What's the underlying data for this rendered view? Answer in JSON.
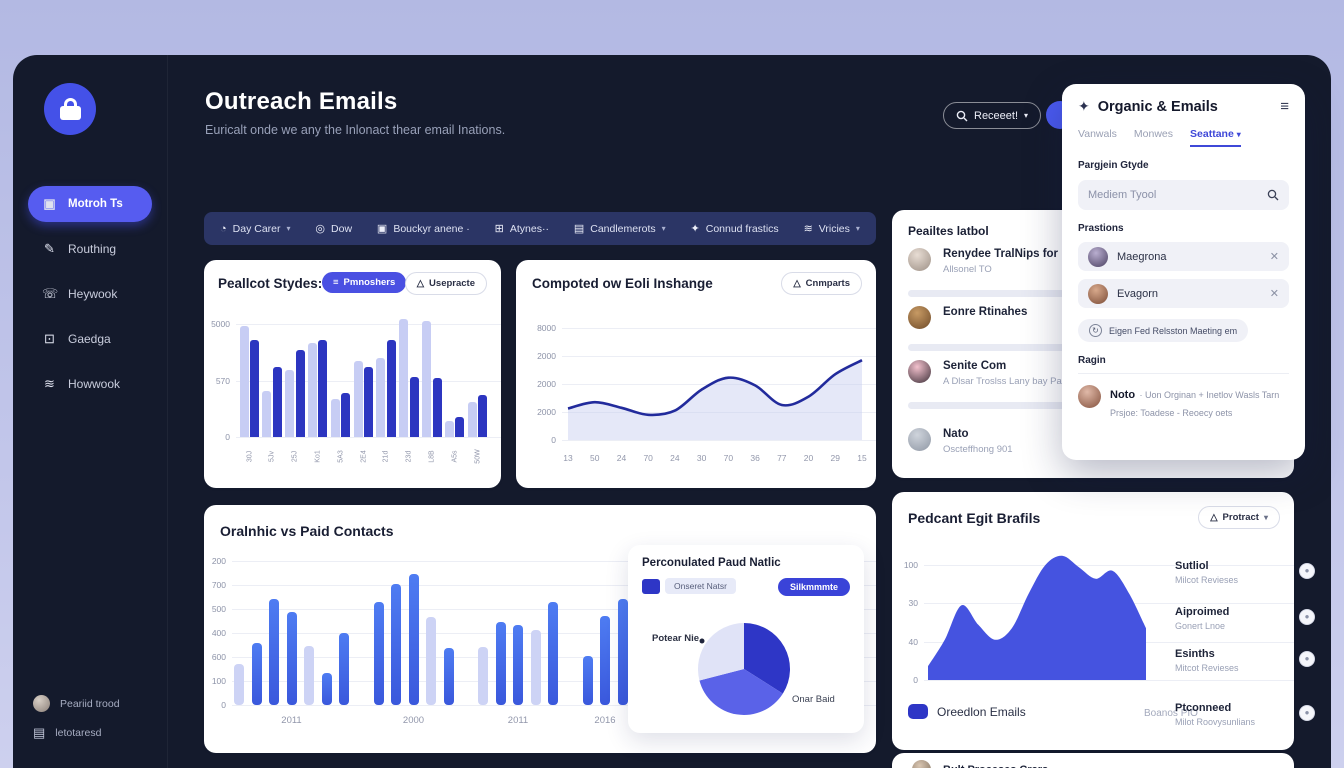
{
  "page": {
    "accent": "#4a50e2",
    "window_bg": "#141a2c",
    "content_bg": "#edeef6"
  },
  "sidebar": {
    "items": [
      {
        "label": "Motroh Ts",
        "icon": "briefcase-icon",
        "active": true
      },
      {
        "label": "Routhing",
        "icon": "pen-icon"
      },
      {
        "label": "Heywook",
        "icon": "phone-icon"
      },
      {
        "label": "Gaedga",
        "icon": "box-arrow-icon"
      },
      {
        "label": "Howwook",
        "icon": "layers-icon"
      }
    ],
    "footer": [
      {
        "label": "Peariid trood"
      },
      {
        "label": "letotaresd"
      }
    ]
  },
  "header": {
    "title": "Outreach Emails",
    "subtitle": "Euricalt onde we any the Inlonact thear email Inations.",
    "search_label": "Receeet!"
  },
  "toolbar": {
    "items": [
      {
        "label": "Day Carer",
        "chevron": true
      },
      {
        "label": "Dow",
        "chevron": false
      },
      {
        "label": "Bouckyr anene ·",
        "chevron": false
      },
      {
        "label": "Atynes··",
        "chevron": false
      },
      {
        "label": "Candlemerots",
        "chevron": true
      },
      {
        "label": "Connud frastics",
        "chevron": false
      },
      {
        "label": "Vricies",
        "chevron": true
      }
    ]
  },
  "cards": {
    "stydes": {
      "title": "Peallcot Stydes:",
      "btn_primary": "Pmnoshers",
      "btn_secondary": "Usepracte"
    },
    "inshange": {
      "title": "Compoted ow Eoli Inshange",
      "btn": "Cnmparts"
    },
    "contacts_list": {
      "title": "Peailtes latbol",
      "rows": [
        {
          "name": "Renydee TralNips for Piali",
          "sub": "Allsonel TO"
        },
        {
          "name": "Eonre Rtinahes",
          "sub": ""
        },
        {
          "name": "Senite Com",
          "sub": "A Dlsar Troslss Lany bay Palsis"
        },
        {
          "name": "Nato",
          "sub": "Oscteffhong 901"
        }
      ]
    },
    "organic": {
      "title": "Oralnhic vs Paid Contacts"
    },
    "paid_traffic": {
      "title": "Perconulated Paud Natlic",
      "legend": "Onseret Natsr",
      "button": "Silkmmmte",
      "label_left": "Potear Nie",
      "label_right": "Onar Baid"
    },
    "brafils": {
      "title": "Pedcant Egit Brafils",
      "btn": "Protract",
      "legend": "Oreedlon Emails",
      "note": "Boanos PIO",
      "stats": [
        {
          "title": "Sutliol",
          "sub": "Milcot Revieses"
        },
        {
          "title": "Aiproimed",
          "sub": "Gonert Lnoe"
        },
        {
          "title": "Esinths",
          "sub": "Mitcot Revieses"
        },
        {
          "title": "Ptconneed",
          "sub": "Milot Roovysunlians"
        }
      ]
    },
    "bottom_partial": {
      "title": "Bult Proceses Crars"
    }
  },
  "panel": {
    "title": "Organic & Emails",
    "tabs": [
      {
        "label": "Vanwals",
        "active": false
      },
      {
        "label": "Monwes",
        "active": false
      },
      {
        "label": "Seattane",
        "active": true
      }
    ],
    "section_style": "Pargjein Gtyde",
    "search_placeholder": "Mediem Tyool",
    "section_positions": "Prastions",
    "chips": [
      {
        "label": "Maegrona"
      },
      {
        "label": "Evagorn"
      }
    ],
    "action": "Eigen Fed Relsston Maeting em",
    "section_region": "Ragin",
    "note": {
      "name": "Noto",
      "line1": "· Uon Orginan + Inetlov Wasls Tarn",
      "line2": "Prsjoe:  Toadese - Reoecy oets"
    }
  },
  "chart_data": [
    {
      "id": "stydes",
      "type": "bar",
      "title": "Peallcot Stydes:",
      "categories": [
        "30J",
        "5Jv",
        "25J",
        "Ko1",
        "5A3",
        "2E4",
        "21d",
        "23d",
        "L8B",
        "A5s",
        "50W"
      ],
      "series": [
        {
          "name": "light",
          "values": [
            4900,
            2050,
            2950,
            4150,
            1700,
            3350,
            3500,
            5200,
            5150,
            700,
            1550
          ]
        },
        {
          "name": "dark",
          "values": [
            4300,
            3100,
            3850,
            4300,
            1950,
            3100,
            4300,
            2650,
            2600,
            900,
            1850
          ]
        }
      ],
      "yticks": [
        "5000",
        "570",
        "0"
      ],
      "ytop": 5000,
      "ylim": [
        0,
        5500
      ],
      "colors": {
        "light": "#c7cdf4",
        "dark": "#2c35c0"
      }
    },
    {
      "id": "inshange",
      "type": "line",
      "title": "Compoted ow Eoli Inshange",
      "x": [
        "13",
        "50",
        "24",
        "70",
        "24",
        "30",
        "70",
        "36",
        "77",
        "20",
        "29",
        "15"
      ],
      "values": [
        2250,
        2700,
        2300,
        1800,
        2100,
        3600,
        4450,
        3900,
        2500,
        3100,
        4700,
        5700
      ],
      "yticks": [
        "8000",
        "2000",
        "2000",
        "2000",
        "0"
      ],
      "ytop": 8000,
      "ylim": [
        0,
        8000
      ],
      "colors": {
        "line": "#222b9c",
        "fill": "#c6ccf0"
      }
    },
    {
      "id": "organic",
      "type": "bar",
      "title": "Oralnhic vs Paid Contacts",
      "categories": [
        "2011",
        "2000",
        "2011",
        "2016"
      ],
      "groups": [
        7,
        5,
        5,
        3
      ],
      "bars": [
        {
          "v": 230,
          "c": "light"
        },
        {
          "v": 342,
          "c": "blue"
        },
        {
          "v": 587,
          "c": "blue"
        },
        {
          "v": 518,
          "c": "blue"
        },
        {
          "v": 330,
          "c": "light"
        },
        {
          "v": 176,
          "c": "blue"
        },
        {
          "v": 398,
          "c": "blue"
        },
        {
          "v": 570,
          "c": "blue"
        },
        {
          "v": 672,
          "c": "blue"
        },
        {
          "v": 728,
          "c": "blue"
        },
        {
          "v": 489,
          "c": "light"
        },
        {
          "v": 315,
          "c": "blue"
        },
        {
          "v": 324,
          "c": "light"
        },
        {
          "v": 461,
          "c": "blue"
        },
        {
          "v": 442,
          "c": "blue"
        },
        {
          "v": 418,
          "c": "light"
        },
        {
          "v": 570,
          "c": "blue"
        },
        {
          "v": 270,
          "c": "blue"
        },
        {
          "v": 494,
          "c": "blue"
        },
        {
          "v": 590,
          "c": "blue"
        }
      ],
      "yticks": [
        "200",
        "700",
        "500",
        "400",
        "600",
        "100",
        "0"
      ],
      "ytop": 800,
      "ylim": [
        0,
        800
      ],
      "colors": {
        "light": "#cdd3f5",
        "blue_top": "#4e7cf2",
        "blue_bottom": "#3a58dc"
      }
    },
    {
      "id": "paid_pie",
      "type": "pie",
      "slices": [
        {
          "label": "",
          "value": 34,
          "color": "#2e36c6"
        },
        {
          "label": "Onar Baid",
          "value": 37,
          "color": "#5a62e8"
        },
        {
          "label": "Potear Nie",
          "value": 29,
          "color": "#e0e3f7"
        }
      ],
      "title": "Perconulated Paud Natlic"
    },
    {
      "id": "brafils",
      "type": "area",
      "title": "Pedcant Egit Brafils",
      "values": [
        12,
        35,
        65,
        48,
        35,
        45,
        75,
        100,
        108,
        98,
        88,
        95,
        75,
        45
      ],
      "yticks": [
        "100",
        "30",
        "40",
        "0"
      ],
      "ytop": 100,
      "ylim": [
        0,
        110
      ],
      "colors": {
        "fill": "#4553e0"
      }
    }
  ]
}
